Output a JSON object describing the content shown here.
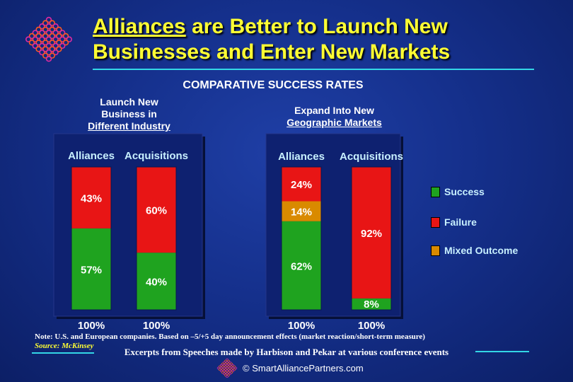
{
  "title": {
    "part1": "Alliances",
    "part2": " are Better to Launch New",
    "line2": "Businesses and Enter New Markets"
  },
  "subtitle": "COMPARATIVE SUCCESS RATES",
  "colors": {
    "success": "#1fa31f",
    "failure": "#e81515",
    "mixed": "#d98a00"
  },
  "chart_data": [
    {
      "type": "bar",
      "stacked": true,
      "title_lines": [
        "Launch New",
        "Business in",
        "Different Industry"
      ],
      "categories": [
        "Alliances",
        "Acquisitions"
      ],
      "totals": [
        "100%",
        "100%"
      ],
      "ylim": [
        0,
        100
      ],
      "series": [
        {
          "name": "Success",
          "values": [
            57,
            40
          ]
        },
        {
          "name": "Mixed Outcome",
          "values": [
            0,
            0
          ]
        },
        {
          "name": "Failure",
          "values": [
            43,
            60
          ]
        }
      ]
    },
    {
      "type": "bar",
      "stacked": true,
      "title_lines": [
        "Expand Into New",
        "Geographic Markets"
      ],
      "categories": [
        "Alliances",
        "Acquisitions"
      ],
      "totals": [
        "100%",
        "100%"
      ],
      "ylim": [
        0,
        100
      ],
      "series": [
        {
          "name": "Success",
          "values": [
            62,
            8
          ]
        },
        {
          "name": "Mixed Outcome",
          "values": [
            14,
            0
          ]
        },
        {
          "name": "Failure",
          "values": [
            24,
            92
          ]
        }
      ]
    }
  ],
  "legend": [
    {
      "label": "Success"
    },
    {
      "label": "Failure"
    },
    {
      "label": "Mixed Outcome"
    }
  ],
  "note": "Note:  U.S. and European companies.  Based on –5/+5 day announcement effects (market reaction/short-term measure)",
  "source": "Source: McKinsey",
  "excerpt": "Excerpts from Speeches made by Harbison and Pekar at various conference events",
  "copyright": "© SmartAlliancePartners.com"
}
